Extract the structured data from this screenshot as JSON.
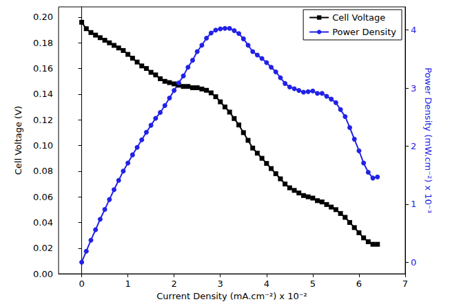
{
  "chart_data": {
    "type": "line",
    "x_label": "Current Density (mA.cm⁻²) x 10⁻²",
    "y_label": "Cell Voltage (V)",
    "y2_label": "Power Density (mW.cm⁻²) x 10⁻³",
    "x": [
      0,
      0.1,
      0.2,
      0.3,
      0.4,
      0.5,
      0.6,
      0.7,
      0.8,
      0.9,
      1.0,
      1.1,
      1.2,
      1.3,
      1.4,
      1.5,
      1.6,
      1.7,
      1.8,
      1.9,
      2.0,
      2.1,
      2.2,
      2.3,
      2.4,
      2.5,
      2.6,
      2.7,
      2.8,
      2.9,
      3.0,
      3.1,
      3.2,
      3.3,
      3.4,
      3.5,
      3.6,
      3.7,
      3.8,
      3.9,
      4.0,
      4.1,
      4.2,
      4.3,
      4.4,
      4.5,
      4.6,
      4.7,
      4.8,
      4.9,
      5.0,
      5.1,
      5.2,
      5.3,
      5.4,
      5.5,
      5.6,
      5.7,
      5.8,
      5.9,
      6.0,
      6.1,
      6.2,
      6.3,
      6.4
    ],
    "series": [
      {
        "name": "Cell Voltage",
        "color": "#000000",
        "marker": "square",
        "line_style": "solid",
        "axis": "y",
        "values": [
          0.196,
          0.191,
          0.188,
          0.186,
          0.184,
          0.182,
          0.18,
          0.178,
          0.176,
          0.174,
          0.171,
          0.168,
          0.165,
          0.162,
          0.16,
          0.157,
          0.155,
          0.152,
          0.15,
          0.149,
          0.148,
          0.147,
          0.146,
          0.146,
          0.145,
          0.145,
          0.144,
          0.143,
          0.141,
          0.138,
          0.134,
          0.13,
          0.126,
          0.121,
          0.116,
          0.11,
          0.104,
          0.098,
          0.094,
          0.09,
          0.086,
          0.082,
          0.078,
          0.074,
          0.07,
          0.067,
          0.065,
          0.063,
          0.061,
          0.06,
          0.059,
          0.057,
          0.056,
          0.054,
          0.052,
          0.05,
          0.047,
          0.044,
          0.04,
          0.036,
          0.032,
          0.028,
          0.025,
          0.023,
          0.023
        ]
      },
      {
        "name": "Power Density",
        "color": "#2222e6",
        "marker": "circle",
        "line_style": "solid",
        "axis": "y2",
        "values": [
          0,
          0.19,
          0.38,
          0.56,
          0.74,
          0.91,
          1.08,
          1.25,
          1.41,
          1.57,
          1.71,
          1.85,
          1.98,
          2.11,
          2.24,
          2.36,
          2.48,
          2.58,
          2.7,
          2.83,
          2.96,
          3.09,
          3.21,
          3.36,
          3.48,
          3.63,
          3.74,
          3.86,
          3.95,
          4.0,
          4.02,
          4.03,
          4.03,
          3.99,
          3.94,
          3.85,
          3.74,
          3.63,
          3.57,
          3.51,
          3.44,
          3.36,
          3.28,
          3.18,
          3.08,
          3.02,
          2.99,
          2.96,
          2.93,
          2.94,
          2.95,
          2.91,
          2.91,
          2.86,
          2.81,
          2.75,
          2.63,
          2.51,
          2.32,
          2.12,
          1.92,
          1.71,
          1.55,
          1.45,
          1.47
        ]
      }
    ],
    "xlim": [
      -0.5,
      7
    ],
    "xticks": [
      0,
      1,
      2,
      3,
      4,
      5,
      6,
      7
    ],
    "ylim": [
      0,
      0.208
    ],
    "yticks": [
      {
        "value": 0,
        "label": "0.00"
      },
      {
        "value": 0.02,
        "label": "0.02"
      },
      {
        "value": 0.04,
        "label": "0.04"
      },
      {
        "value": 0.06,
        "label": "0.06"
      },
      {
        "value": 0.08,
        "label": "0.08"
      },
      {
        "value": 0.1,
        "label": "0.10"
      },
      {
        "value": 0.12,
        "label": "0.12"
      },
      {
        "value": 0.14,
        "label": "0.14"
      },
      {
        "value": 0.16,
        "label": "0.16"
      },
      {
        "value": 0.18,
        "label": "0.18"
      },
      {
        "value": 0.2,
        "label": "0.20"
      }
    ],
    "y2lim": [
      -0.2,
      4.4
    ],
    "y2ticks": [
      0,
      1,
      2,
      3,
      4
    ],
    "grid": false,
    "legend": "upper right"
  }
}
